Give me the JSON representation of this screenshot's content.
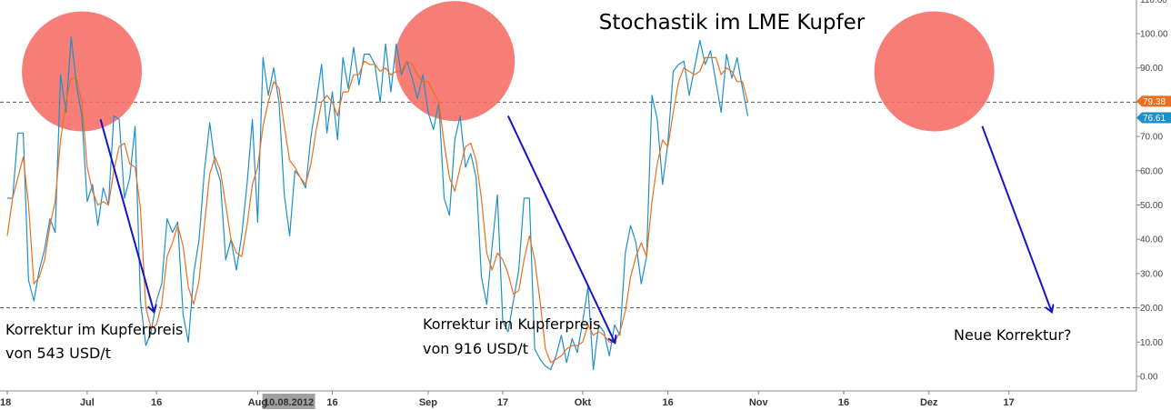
{
  "chart_data": {
    "type": "line",
    "title": "Stochastik im LME Kupfer",
    "ylim": [
      -3,
      111
    ],
    "ytick_labels": [
      "110.00",
      "100.00",
      "90.00",
      "80.00",
      "70.00",
      "60.00",
      "50.00",
      "40.00",
      "30.00",
      "20.00",
      "10.00",
      "0.00"
    ],
    "ytick_values": [
      110,
      100,
      90,
      80,
      70,
      60,
      50,
      40,
      30,
      20,
      10,
      0
    ],
    "reference_lines": [
      80,
      20
    ],
    "x_tick_labels": [
      {
        "i": 0,
        "label": "18"
      },
      {
        "i": 15,
        "label": "Jul"
      },
      {
        "i": 28,
        "label": "16"
      },
      {
        "i": 47,
        "label": "Aug"
      },
      {
        "i": 61,
        "label": "16"
      },
      {
        "i": 79,
        "label": "Sep"
      },
      {
        "i": 93,
        "label": "17"
      },
      {
        "i": 108,
        "label": "Okt"
      },
      {
        "i": 124,
        "label": "16"
      },
      {
        "i": 141,
        "label": "Nov"
      },
      {
        "i": 157,
        "label": "16"
      },
      {
        "i": 173,
        "label": "Dez"
      },
      {
        "i": 188,
        "label": "17"
      }
    ],
    "date_highlight": {
      "i": 53,
      "label": "10.08.2012"
    },
    "x_index_range": [
      0,
      209
    ],
    "series": [
      {
        "color": "#1e90c8",
        "last_value_label": "76.61",
        "values": [
          52,
          52,
          71,
          71,
          28,
          22,
          31,
          37,
          46,
          42,
          88,
          77,
          99,
          85,
          76,
          51,
          56,
          44,
          55,
          50,
          76,
          75,
          52,
          58,
          73,
          22,
          9,
          13,
          22,
          27,
          46,
          42,
          45,
          18,
          10,
          30,
          40,
          60,
          74,
          62,
          57,
          34,
          40,
          31,
          41,
          56,
          75,
          45,
          93,
          82,
          90,
          80,
          53,
          41,
          60,
          58,
          55,
          70,
          80,
          91,
          71,
          83,
          69,
          93,
          84,
          96,
          85,
          94,
          94,
          91,
          80,
          97,
          83,
          97,
          88,
          92,
          87,
          81,
          88,
          77,
          72,
          80,
          52,
          47,
          69,
          76,
          61,
          65,
          58,
          29,
          21,
          38,
          53,
          16,
          13,
          22,
          31,
          52,
          52,
          8,
          5,
          3,
          2,
          6,
          12,
          4,
          11,
          7,
          16,
          26,
          2,
          15,
          13,
          6,
          15,
          12,
          36,
          44,
          39,
          27,
          35,
          82,
          75,
          56,
          68,
          89,
          91,
          92,
          82,
          90,
          98,
          91,
          95,
          86,
          77,
          94,
          87,
          93,
          84,
          76
        ]
      },
      {
        "color": "#ee6e1c",
        "last_value_label": "79.38",
        "values": [
          41,
          52,
          58,
          64,
          50,
          27,
          29,
          34,
          44,
          51,
          69,
          80,
          87,
          87,
          80,
          61,
          54,
          50,
          51,
          50,
          60,
          67,
          68,
          62,
          61,
          49,
          20,
          14,
          15,
          21,
          35,
          39,
          44,
          38,
          26,
          21,
          28,
          44,
          59,
          64,
          60,
          50,
          40,
          36,
          35,
          44,
          56,
          61,
          73,
          80,
          86,
          84,
          73,
          63,
          61,
          58,
          56,
          62,
          72,
          80,
          82,
          80,
          76,
          83,
          83,
          88,
          88,
          92,
          91,
          91,
          89,
          90,
          88,
          89,
          89,
          92,
          91,
          88,
          86,
          86,
          83,
          80,
          68,
          58,
          54,
          61,
          67,
          68,
          63,
          52,
          36,
          31,
          36,
          34,
          30,
          24,
          25,
          34,
          41,
          34,
          22,
          8,
          4,
          5,
          6,
          8,
          9,
          9,
          10,
          15,
          12,
          13,
          12,
          10,
          10,
          13,
          19,
          29,
          35,
          39,
          35,
          51,
          62,
          69,
          67,
          77,
          86,
          90,
          89,
          88,
          89,
          93,
          93,
          93,
          88,
          90,
          89,
          86,
          86,
          80
        ]
      }
    ],
    "annotations": [
      {
        "line1": "Korrektur im Kupferpreis",
        "line2": "von 543 USD/t"
      },
      {
        "line1": "Korrektur im Kupferpreis",
        "line2": "von 916 USD/t"
      },
      {
        "line1": "Neue Korrektur?"
      }
    ],
    "highlight_circles": [
      {
        "i_center": 14,
        "value_center": 89
      },
      {
        "i_center": 84,
        "value_center": 92
      },
      {
        "i_center": 174,
        "value_center": 89
      }
    ],
    "trend_arrows": [
      {
        "from": {
          "i": 17.5,
          "value": 75
        },
        "to": {
          "i": 27.5,
          "value": 19
        }
      },
      {
        "from": {
          "i": 94,
          "value": 76
        },
        "to": {
          "i": 114,
          "value": 10
        }
      },
      {
        "from": {
          "i": 183,
          "value": 73
        },
        "to": {
          "i": 196,
          "value": 19
        }
      }
    ],
    "colors": {
      "circle_fill": "#f56c64",
      "arrow": "#1414c8",
      "ref_line": "#555555",
      "axis": "#888888",
      "date_highlight_bg": "#a0a0a0"
    }
  }
}
